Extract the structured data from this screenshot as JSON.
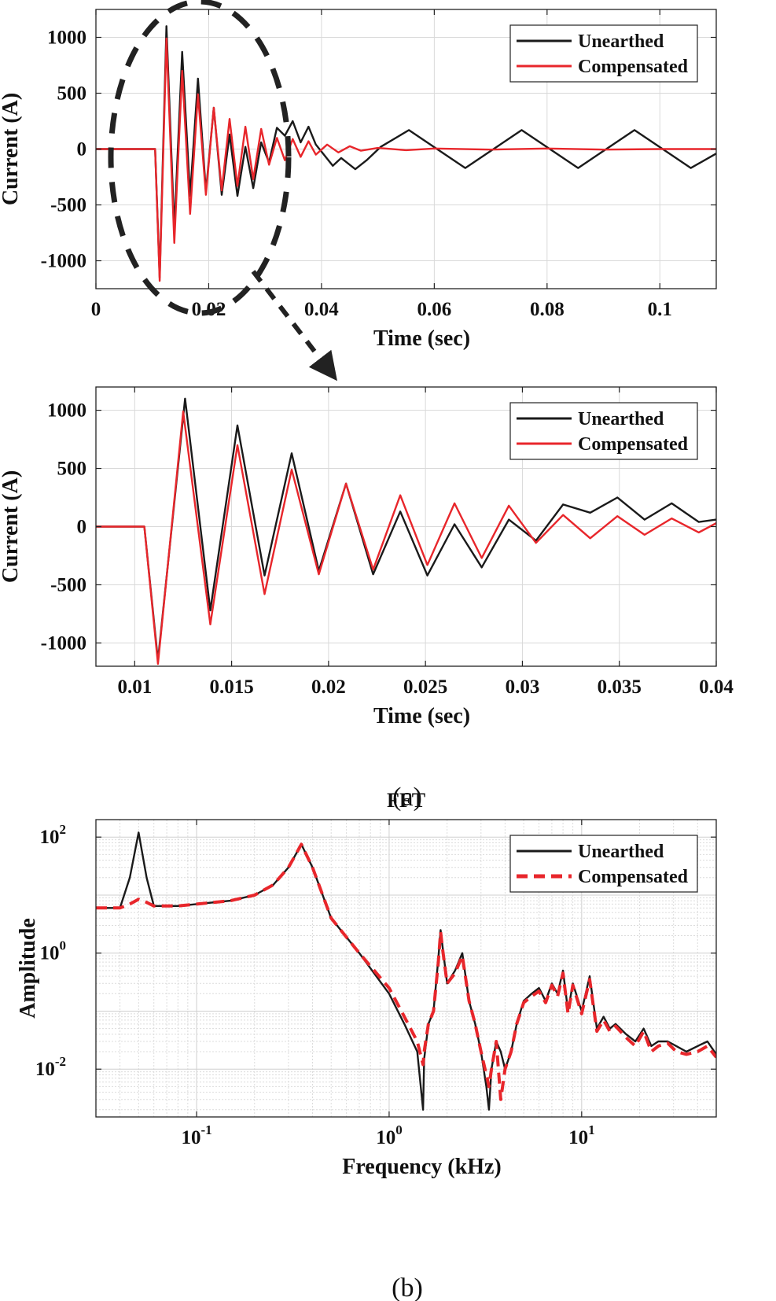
{
  "colors": {
    "unearthed": "#1a1a1a",
    "compensated": "#e8262b",
    "grid": "#d9d9d9",
    "annotation": "#222222"
  },
  "caption_a": "(a)",
  "caption_b": "(b)",
  "chart_data": [
    {
      "type": "line",
      "panel": "a-top",
      "title": "",
      "xlabel": "Time (sec)",
      "ylabel": "Current (A)",
      "xlim": [
        0,
        0.11
      ],
      "ylim": [
        -1250,
        1250
      ],
      "xticks": [
        0,
        0.02,
        0.04,
        0.06,
        0.08,
        0.1
      ],
      "xtick_labels": [
        "0",
        "0.02",
        "0.04",
        "0.06",
        "0.08",
        "0.1"
      ],
      "yticks": [
        -1000,
        -500,
        0,
        500,
        1000
      ],
      "ytick_labels": [
        "-1000",
        "-500",
        "0",
        "500",
        "1000"
      ],
      "legend": {
        "position": "top-right",
        "entries": [
          "Unearthed",
          "Compensated"
        ]
      },
      "series": [
        {
          "name": "Unearthed",
          "color": "#1a1a1a",
          "dashed": false,
          "x": [
            0,
            0.0105,
            0.0113,
            0.0125,
            0.0139,
            0.0153,
            0.0167,
            0.0181,
            0.0195,
            0.0209,
            0.0223,
            0.0237,
            0.0251,
            0.0265,
            0.0279,
            0.0293,
            0.0307,
            0.0321,
            0.0335,
            0.0349,
            0.0363,
            0.0377,
            0.039,
            0.042,
            0.0435,
            0.046,
            0.048,
            0.0505,
            0.0555,
            0.0605,
            0.0655,
            0.0705,
            0.0755,
            0.0805,
            0.0855,
            0.0905,
            0.0955,
            0.1005,
            0.1055,
            0.11
          ],
          "y": [
            0,
            0,
            -1150,
            1100,
            -720,
            870,
            -420,
            630,
            -380,
            370,
            -410,
            130,
            -420,
            20,
            -350,
            60,
            -120,
            190,
            120,
            250,
            60,
            200,
            40,
            -150,
            -80,
            -180,
            -100,
            20,
            170,
            0,
            -170,
            0,
            170,
            0,
            -170,
            0,
            170,
            0,
            -170,
            -40
          ]
        },
        {
          "name": "Compensated",
          "color": "#e8262b",
          "dashed": false,
          "x": [
            0,
            0.0105,
            0.0113,
            0.0125,
            0.0139,
            0.0153,
            0.0167,
            0.0181,
            0.0195,
            0.0209,
            0.0223,
            0.0237,
            0.0251,
            0.0265,
            0.0279,
            0.0293,
            0.0307,
            0.0321,
            0.0335,
            0.0349,
            0.0363,
            0.0377,
            0.039,
            0.041,
            0.043,
            0.045,
            0.047,
            0.05,
            0.055,
            0.06,
            0.07,
            0.08,
            0.09,
            0.1,
            0.11
          ],
          "y": [
            0,
            0,
            -1180,
            990,
            -840,
            700,
            -580,
            490,
            -410,
            370,
            -370,
            270,
            -330,
            200,
            -270,
            180,
            -140,
            100,
            -100,
            90,
            -70,
            70,
            -50,
            40,
            -30,
            25,
            -15,
            10,
            -10,
            5,
            -5,
            5,
            -5,
            0,
            0
          ]
        }
      ]
    },
    {
      "type": "line",
      "panel": "a-bottom",
      "title": "",
      "xlabel": "Time (sec)",
      "ylabel": "Current (A)",
      "xlim": [
        0.008,
        0.04
      ],
      "ylim": [
        -1200,
        1200
      ],
      "xticks": [
        0.01,
        0.015,
        0.02,
        0.025,
        0.03,
        0.035,
        0.04
      ],
      "xtick_labels": [
        "0.01",
        "0.015",
        "0.02",
        "0.025",
        "0.03",
        "0.035",
        "0.04"
      ],
      "yticks": [
        -1000,
        -500,
        0,
        500,
        1000
      ],
      "ytick_labels": [
        "-1000",
        "-500",
        "0",
        "500",
        "1000"
      ],
      "legend": {
        "position": "top-right",
        "entries": [
          "Unearthed",
          "Compensated"
        ]
      },
      "series": [
        {
          "name": "Unearthed",
          "color": "#1a1a1a",
          "dashed": false,
          "x": [
            0.008,
            0.0105,
            0.0112,
            0.0126,
            0.0139,
            0.0153,
            0.0167,
            0.0181,
            0.0195,
            0.0209,
            0.0223,
            0.0237,
            0.0251,
            0.0265,
            0.0279,
            0.0293,
            0.0307,
            0.0321,
            0.0335,
            0.0349,
            0.0363,
            0.0377,
            0.0391,
            0.04
          ],
          "y": [
            0,
            0,
            -1150,
            1100,
            -720,
            870,
            -420,
            630,
            -380,
            370,
            -410,
            130,
            -420,
            20,
            -350,
            60,
            -120,
            190,
            120,
            250,
            60,
            200,
            40,
            60
          ]
        },
        {
          "name": "Compensated",
          "color": "#e8262b",
          "dashed": false,
          "x": [
            0.008,
            0.0105,
            0.0112,
            0.0125,
            0.0139,
            0.0153,
            0.0167,
            0.0181,
            0.0195,
            0.0209,
            0.0223,
            0.0237,
            0.0251,
            0.0265,
            0.0279,
            0.0293,
            0.0307,
            0.0321,
            0.0335,
            0.0349,
            0.0363,
            0.0377,
            0.0391,
            0.04
          ],
          "y": [
            0,
            0,
            -1180,
            990,
            -840,
            700,
            -580,
            490,
            -410,
            370,
            -370,
            270,
            -330,
            200,
            -270,
            180,
            -140,
            100,
            -100,
            90,
            -70,
            70,
            -50,
            30
          ]
        }
      ]
    },
    {
      "type": "line",
      "panel": "b",
      "title": "FFT",
      "xlabel": "Frequency (kHz)",
      "ylabel": "Amplitude",
      "xscale": "log",
      "yscale": "log",
      "xlim": [
        0.03,
        50
      ],
      "ylim": [
        0.0015,
        200
      ],
      "xticks": [
        0.1,
        1,
        10
      ],
      "xtick_labels": [
        {
          "base": "10",
          "exp": "-1"
        },
        {
          "base": "10",
          "exp": "0"
        },
        {
          "base": "10",
          "exp": "1"
        }
      ],
      "yticks": [
        0.01,
        1,
        100
      ],
      "ytick_labels": [
        {
          "base": "10",
          "exp": "-2"
        },
        {
          "base": "10",
          "exp": "0"
        },
        {
          "base": "10",
          "exp": "2"
        }
      ],
      "legend": {
        "position": "top-right",
        "entries": [
          "Unearthed",
          "Compensated"
        ]
      },
      "series": [
        {
          "name": "Unearthed",
          "color": "#1a1a1a",
          "dashed": false,
          "x": [
            0.03,
            0.04,
            0.045,
            0.05,
            0.055,
            0.06,
            0.08,
            0.1,
            0.15,
            0.2,
            0.25,
            0.3,
            0.35,
            0.4,
            0.5,
            0.7,
            1.0,
            1.2,
            1.4,
            1.5,
            1.52,
            1.6,
            1.7,
            1.8,
            1.85,
            1.9,
            2.0,
            2.2,
            2.4,
            2.6,
            2.8,
            3.0,
            3.2,
            3.3,
            3.4,
            3.6,
            3.8,
            4.0,
            4.3,
            4.6,
            5.0,
            5.5,
            6.0,
            6.5,
            7.0,
            7.5,
            8.0,
            8.5,
            9.0,
            10,
            11,
            12,
            13,
            14,
            15,
            17,
            19,
            21,
            23,
            25,
            28,
            31,
            35,
            40,
            45,
            50
          ],
          "y": [
            6,
            6,
            20,
            120,
            20,
            6.5,
            6.5,
            7,
            8,
            10,
            15,
            30,
            75,
            30,
            4,
            1.0,
            0.2,
            0.06,
            0.02,
            0.002,
            0.015,
            0.06,
            0.1,
            0.8,
            2.5,
            1.2,
            0.3,
            0.5,
            1.0,
            0.15,
            0.06,
            0.02,
            0.005,
            0.002,
            0.01,
            0.03,
            0.02,
            0.01,
            0.02,
            0.06,
            0.15,
            0.2,
            0.25,
            0.15,
            0.3,
            0.2,
            0.5,
            0.1,
            0.3,
            0.1,
            0.4,
            0.05,
            0.08,
            0.05,
            0.06,
            0.04,
            0.03,
            0.05,
            0.025,
            0.03,
            0.03,
            0.025,
            0.02,
            0.025,
            0.03,
            0.018
          ]
        },
        {
          "name": "Compensated",
          "color": "#e8262b",
          "dashed": true,
          "x": [
            0.03,
            0.04,
            0.045,
            0.05,
            0.055,
            0.06,
            0.08,
            0.1,
            0.15,
            0.2,
            0.25,
            0.3,
            0.35,
            0.4,
            0.5,
            0.7,
            1.0,
            1.2,
            1.4,
            1.5,
            1.52,
            1.6,
            1.7,
            1.8,
            1.85,
            1.9,
            2.0,
            2.2,
            2.4,
            2.6,
            2.8,
            3.0,
            3.2,
            3.3,
            3.4,
            3.6,
            3.8,
            4.0,
            4.3,
            4.6,
            5.0,
            5.5,
            6.0,
            6.5,
            7.0,
            7.5,
            8.0,
            8.5,
            9.0,
            10,
            11,
            12,
            13,
            14,
            15,
            17,
            19,
            21,
            23,
            25,
            28,
            31,
            35,
            40,
            45,
            50
          ],
          "y": [
            6,
            6,
            7,
            8.5,
            7.5,
            6.5,
            6.5,
            7,
            8,
            10,
            15,
            30,
            75,
            30,
            4,
            1.0,
            0.25,
            0.08,
            0.03,
            0.012,
            0.02,
            0.06,
            0.1,
            0.7,
            2.3,
            1.1,
            0.3,
            0.45,
            0.9,
            0.15,
            0.06,
            0.02,
            0.008,
            0.005,
            0.01,
            0.03,
            0.003,
            0.01,
            0.02,
            0.06,
            0.14,
            0.18,
            0.22,
            0.14,
            0.28,
            0.18,
            0.45,
            0.09,
            0.28,
            0.09,
            0.35,
            0.045,
            0.07,
            0.045,
            0.055,
            0.035,
            0.025,
            0.045,
            0.02,
            0.025,
            0.028,
            0.02,
            0.018,
            0.02,
            0.025,
            0.016
          ]
        }
      ]
    }
  ]
}
